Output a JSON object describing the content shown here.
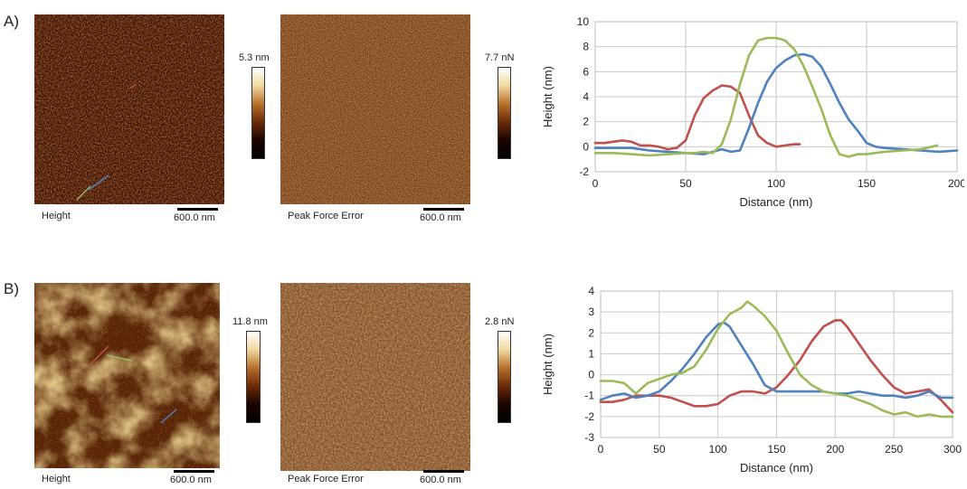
{
  "panels": [
    {
      "label": "A)",
      "height_caption": "Height",
      "error_caption": "Peak Force Error",
      "scale_height": "600.0 nm",
      "scale_error": "600.0 nm",
      "colorbar_height": "5.3 nm",
      "colorbar_error": "7.7 nN"
    },
    {
      "label": "B)",
      "height_caption": "Height",
      "error_caption": "Peak Force Error",
      "scale_height": "600.0 nm",
      "scale_error": "600.0 nm",
      "colorbar_height": "11.8 nm",
      "colorbar_error": "2.8 nN"
    }
  ],
  "chart_data": [
    {
      "type": "line",
      "xlabel": "Distance (nm)",
      "ylabel": "Height (nm)",
      "xlim": [
        0,
        200
      ],
      "ylim": [
        -2,
        10
      ],
      "xticks": [
        0,
        50,
        100,
        150,
        200
      ],
      "yticks": [
        -2,
        0,
        2,
        4,
        6,
        8,
        10
      ],
      "grid": true,
      "series": [
        {
          "color": "#c0504d",
          "points": [
            [
              0,
              0.3
            ],
            [
              5,
              0.3
            ],
            [
              10,
              0.4
            ],
            [
              15,
              0.5
            ],
            [
              20,
              0.4
            ],
            [
              25,
              0.1
            ],
            [
              30,
              0.1
            ],
            [
              35,
              0.0
            ],
            [
              40,
              -0.2
            ],
            [
              45,
              -0.1
            ],
            [
              50,
              0.5
            ],
            [
              55,
              2.5
            ],
            [
              60,
              3.9
            ],
            [
              65,
              4.5
            ],
            [
              70,
              4.9
            ],
            [
              75,
              4.8
            ],
            [
              80,
              4.3
            ],
            [
              85,
              2.5
            ],
            [
              90,
              0.9
            ],
            [
              95,
              0.3
            ],
            [
              100,
              0.0
            ],
            [
              105,
              0.1
            ],
            [
              110,
              0.2
            ],
            [
              113,
              0.2
            ]
          ]
        },
        {
          "color": "#4f81bd",
          "points": [
            [
              0,
              -0.1
            ],
            [
              10,
              -0.1
            ],
            [
              20,
              -0.1
            ],
            [
              30,
              -0.3
            ],
            [
              40,
              -0.4
            ],
            [
              50,
              -0.5
            ],
            [
              60,
              -0.6
            ],
            [
              65,
              -0.4
            ],
            [
              70,
              -0.2
            ],
            [
              75,
              -0.4
            ],
            [
              80,
              -0.3
            ],
            [
              85,
              1.5
            ],
            [
              90,
              3.5
            ],
            [
              95,
              5.2
            ],
            [
              100,
              6.3
            ],
            [
              105,
              6.9
            ],
            [
              110,
              7.3
            ],
            [
              115,
              7.4
            ],
            [
              120,
              7.2
            ],
            [
              125,
              6.4
            ],
            [
              130,
              5.0
            ],
            [
              135,
              3.5
            ],
            [
              140,
              2.2
            ],
            [
              145,
              1.3
            ],
            [
              150,
              0.3
            ],
            [
              155,
              0.0
            ],
            [
              160,
              -0.1
            ],
            [
              170,
              -0.2
            ],
            [
              180,
              -0.3
            ],
            [
              190,
              -0.4
            ],
            [
              200,
              -0.3
            ]
          ]
        },
        {
          "color": "#9bbb59",
          "points": [
            [
              0,
              -0.5
            ],
            [
              10,
              -0.5
            ],
            [
              20,
              -0.6
            ],
            [
              30,
              -0.7
            ],
            [
              40,
              -0.6
            ],
            [
              50,
              -0.5
            ],
            [
              55,
              -0.5
            ],
            [
              60,
              -0.4
            ],
            [
              65,
              -0.5
            ],
            [
              70,
              0.2
            ],
            [
              75,
              2.2
            ],
            [
              80,
              5.0
            ],
            [
              85,
              7.3
            ],
            [
              90,
              8.5
            ],
            [
              95,
              8.7
            ],
            [
              100,
              8.7
            ],
            [
              105,
              8.5
            ],
            [
              110,
              7.8
            ],
            [
              115,
              6.5
            ],
            [
              120,
              4.8
            ],
            [
              125,
              3.0
            ],
            [
              130,
              0.9
            ],
            [
              135,
              -0.6
            ],
            [
              140,
              -0.8
            ],
            [
              145,
              -0.6
            ],
            [
              150,
              -0.6
            ],
            [
              160,
              -0.4
            ],
            [
              170,
              -0.3
            ],
            [
              180,
              -0.2
            ],
            [
              186,
              0.0
            ],
            [
              189,
              0.1
            ]
          ]
        }
      ]
    },
    {
      "type": "line",
      "xlabel": "Distance (nm)",
      "ylabel": "Height (nm)",
      "xlim": [
        0,
        300
      ],
      "ylim": [
        -3,
        4
      ],
      "xticks": [
        0,
        50,
        100,
        150,
        200,
        250,
        300
      ],
      "yticks": [
        -3,
        -2,
        -1,
        0,
        1,
        2,
        3,
        4
      ],
      "grid": true,
      "series": [
        {
          "color": "#c0504d",
          "points": [
            [
              0,
              -1.3
            ],
            [
              10,
              -1.3
            ],
            [
              20,
              -1.2
            ],
            [
              30,
              -1.0
            ],
            [
              40,
              -1.0
            ],
            [
              50,
              -1.0
            ],
            [
              60,
              -1.1
            ],
            [
              70,
              -1.3
            ],
            [
              80,
              -1.5
            ],
            [
              90,
              -1.5
            ],
            [
              100,
              -1.4
            ],
            [
              110,
              -1.0
            ],
            [
              120,
              -0.8
            ],
            [
              130,
              -0.8
            ],
            [
              140,
              -0.9
            ],
            [
              150,
              -0.6
            ],
            [
              160,
              0.0
            ],
            [
              170,
              0.7
            ],
            [
              180,
              1.6
            ],
            [
              190,
              2.3
            ],
            [
              200,
              2.6
            ],
            [
              205,
              2.6
            ],
            [
              210,
              2.3
            ],
            [
              220,
              1.5
            ],
            [
              230,
              0.7
            ],
            [
              240,
              0.0
            ],
            [
              250,
              -0.6
            ],
            [
              260,
              -0.9
            ],
            [
              270,
              -0.8
            ],
            [
              280,
              -0.7
            ],
            [
              290,
              -1.2
            ],
            [
              300,
              -1.8
            ]
          ]
        },
        {
          "color": "#4f81bd",
          "points": [
            [
              0,
              -1.2
            ],
            [
              10,
              -1.0
            ],
            [
              20,
              -0.9
            ],
            [
              30,
              -1.1
            ],
            [
              40,
              -1.0
            ],
            [
              50,
              -0.8
            ],
            [
              60,
              -0.3
            ],
            [
              70,
              0.3
            ],
            [
              80,
              1.0
            ],
            [
              90,
              1.8
            ],
            [
              100,
              2.4
            ],
            [
              105,
              2.5
            ],
            [
              110,
              2.3
            ],
            [
              120,
              1.4
            ],
            [
              130,
              0.5
            ],
            [
              140,
              -0.5
            ],
            [
              150,
              -0.8
            ],
            [
              160,
              -0.8
            ],
            [
              170,
              -0.8
            ],
            [
              180,
              -0.8
            ],
            [
              190,
              -0.8
            ],
            [
              200,
              -0.9
            ],
            [
              210,
              -0.9
            ],
            [
              220,
              -0.8
            ],
            [
              230,
              -0.9
            ],
            [
              240,
              -1.0
            ],
            [
              250,
              -1.0
            ],
            [
              260,
              -1.1
            ],
            [
              270,
              -1.0
            ],
            [
              280,
              -0.8
            ],
            [
              290,
              -1.1
            ],
            [
              300,
              -1.1
            ]
          ]
        },
        {
          "color": "#9bbb59",
          "points": [
            [
              0,
              -0.3
            ],
            [
              10,
              -0.3
            ],
            [
              20,
              -0.4
            ],
            [
              30,
              -0.9
            ],
            [
              40,
              -0.4
            ],
            [
              50,
              -0.2
            ],
            [
              60,
              0.0
            ],
            [
              70,
              0.1
            ],
            [
              80,
              0.4
            ],
            [
              90,
              1.2
            ],
            [
              100,
              2.2
            ],
            [
              110,
              2.9
            ],
            [
              120,
              3.2
            ],
            [
              125,
              3.5
            ],
            [
              130,
              3.3
            ],
            [
              140,
              2.8
            ],
            [
              150,
              2.1
            ],
            [
              160,
              1.0
            ],
            [
              170,
              0.0
            ],
            [
              180,
              -0.5
            ],
            [
              190,
              -0.8
            ],
            [
              200,
              -0.9
            ],
            [
              210,
              -1.0
            ],
            [
              220,
              -1.2
            ],
            [
              230,
              -1.4
            ],
            [
              240,
              -1.7
            ],
            [
              250,
              -1.9
            ],
            [
              260,
              -1.8
            ],
            [
              270,
              -2.0
            ],
            [
              280,
              -1.9
            ],
            [
              290,
              -2.0
            ],
            [
              300,
              -2.0
            ]
          ]
        }
      ]
    }
  ],
  "colors": {
    "afm_dark": "#2a0a00",
    "afm_mid": "#8a3c0c",
    "afm_light": "#f6e6b8",
    "red_series": "#c0504d",
    "blue_series": "#4f81bd",
    "green_series": "#9bbb59"
  }
}
